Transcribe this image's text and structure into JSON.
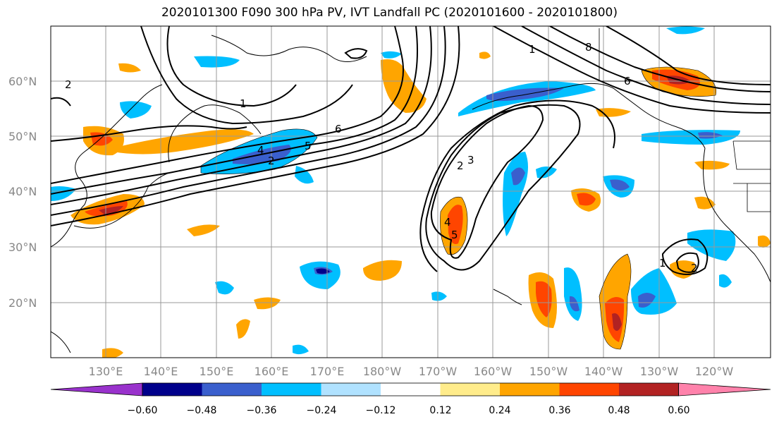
{
  "title": "2020101300 F090 300 hPa PV, IVT Landfall PC (2020101600 - 2020101800)",
  "map": {
    "lat_labels": [
      "60°N",
      "50°N",
      "40°N",
      "30°N",
      "20°N"
    ],
    "lon_labels": [
      "130°E",
      "140°E",
      "150°E",
      "160°E",
      "170°E",
      "180°W",
      "170°W",
      "160°W",
      "150°W",
      "140°W",
      "130°W",
      "120°W"
    ],
    "gridline_color": "#999999",
    "contour_labels": [
      "2",
      "1",
      "6",
      "4",
      "2",
      "5",
      "2",
      "3",
      "4",
      "5",
      "1",
      "8",
      "6",
      "1",
      "2"
    ]
  },
  "colorbar": {
    "colors": [
      "#9932cc",
      "#00008b",
      "#3a5fcd",
      "#00bfff",
      "#b0e2ff",
      "#ffffff",
      "#ffec8b",
      "#ffa500",
      "#ff4500",
      "#b22222",
      "#ff82ab"
    ],
    "tick_labels": [
      "−0.60",
      "−0.48",
      "−0.36",
      "−0.24",
      "−0.12",
      "0.12",
      "0.24",
      "0.36",
      "0.48",
      "0.60"
    ]
  }
}
